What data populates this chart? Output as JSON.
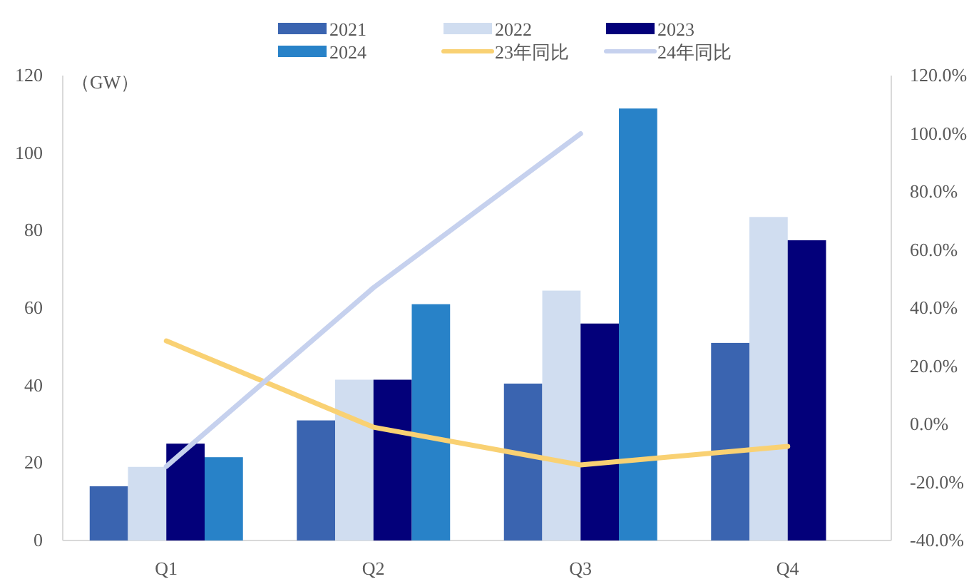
{
  "chart_data": {
    "type": "bar",
    "categories": [
      "Q1",
      "Q2",
      "Q3",
      "Q4"
    ],
    "ylabel": "（GW）",
    "ylim": [
      0,
      120
    ],
    "yticks": [
      0,
      20,
      40,
      60,
      80,
      100,
      120
    ],
    "y2lim": [
      -40,
      120
    ],
    "y2ticks": [
      {
        "value": -40,
        "label": "-40.0%"
      },
      {
        "value": -20,
        "label": "-20.0%"
      },
      {
        "value": 0,
        "label": "0.0%"
      },
      {
        "value": 20,
        "label": "20.0%"
      },
      {
        "value": 40,
        "label": "40.0%"
      },
      {
        "value": 60,
        "label": "60.0%"
      },
      {
        "value": 80,
        "label": "80.0%"
      },
      {
        "value": 100,
        "label": "100.0%"
      },
      {
        "value": 120,
        "label": "120.0%"
      }
    ],
    "legend": "top",
    "series": [
      {
        "name": "2021",
        "color": "#3a64b0",
        "values": [
          14,
          31,
          40.5,
          51
        ]
      },
      {
        "name": "2022",
        "color": "#d0ddf0",
        "values": [
          19,
          41.5,
          64.5,
          83.5
        ]
      },
      {
        "name": "2023",
        "color": "#03007a",
        "values": [
          25,
          41.5,
          56,
          77.5
        ]
      },
      {
        "name": "2024",
        "color": "#2882c8",
        "values": [
          21.5,
          61,
          111.5,
          null
        ]
      },
      {
        "name": "23年同比",
        "type": "line",
        "axis": "y2",
        "color": "#f9d173",
        "values": [
          28.7,
          -1,
          -14,
          -7.6
        ]
      },
      {
        "name": "24年同比",
        "type": "line",
        "axis": "y2",
        "color": "#c6d1ee",
        "values": [
          -14.5,
          47,
          100,
          null
        ]
      }
    ]
  }
}
